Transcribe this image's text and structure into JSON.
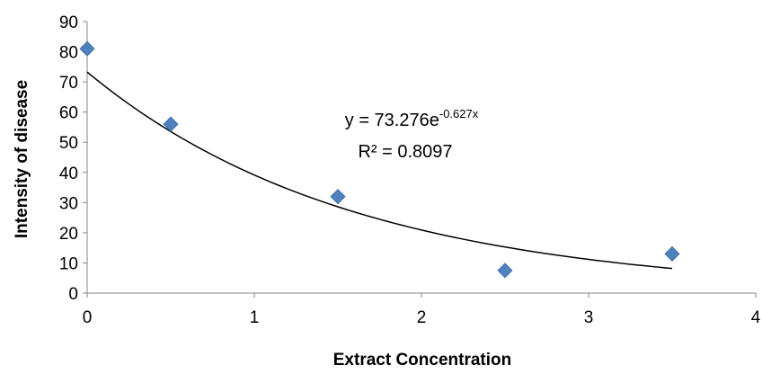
{
  "chart_data": {
    "type": "scatter",
    "xlabel": "Extract Concentration",
    "ylabel": "Intensity of disease",
    "xlim": [
      0,
      4
    ],
    "ylim": [
      0,
      90
    ],
    "x_ticks": [
      0,
      1,
      2,
      3,
      4
    ],
    "y_ticks": [
      0,
      10,
      20,
      30,
      40,
      50,
      60,
      70,
      80,
      90
    ],
    "grid": false,
    "series": [
      {
        "marker": "diamond",
        "color": "#4F81BD",
        "points": [
          {
            "x": 0,
            "y": 81
          },
          {
            "x": 0.5,
            "y": 56
          },
          {
            "x": 1.5,
            "y": 32
          },
          {
            "x": 2.5,
            "y": 7.5
          },
          {
            "x": 3.5,
            "y": 13
          }
        ]
      }
    ],
    "trendline": {
      "type": "exponential",
      "a": 73.276,
      "b": -0.627,
      "x_range": [
        0,
        3.5
      ],
      "color": "#000000",
      "equation_prefix": "y = 73.276e",
      "equation_exponent": "-0.627x",
      "r_squared_label": "R² = 0.8097"
    }
  }
}
